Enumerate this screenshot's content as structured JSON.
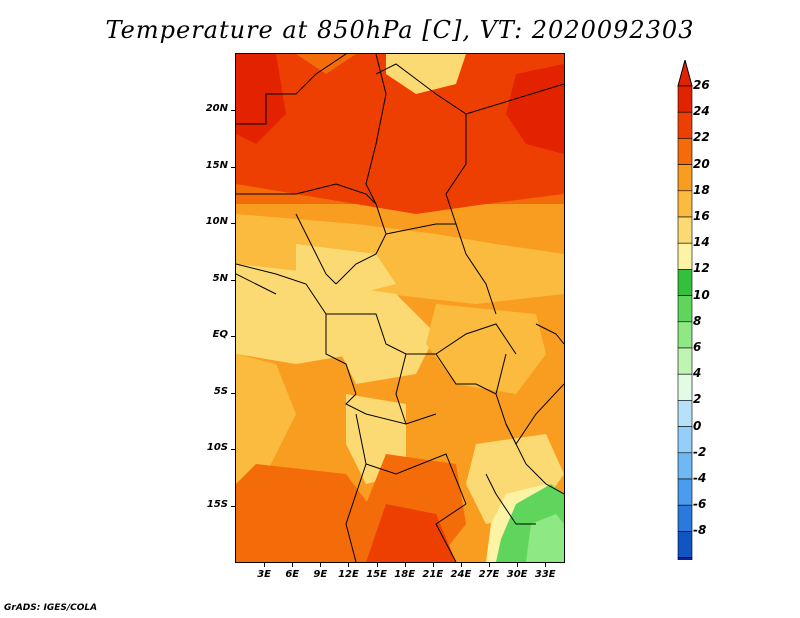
{
  "title": "Temperature at 850hPa [C], VT: 2020092303",
  "footer": "GrADS: IGES/COLA",
  "map": {
    "extent": {
      "lon_min": 0,
      "lon_max": 35,
      "lat_min": -20,
      "lat_max": 25
    },
    "lat_ticks": [
      {
        "value": 20,
        "label": "20N"
      },
      {
        "value": 15,
        "label": "15N"
      },
      {
        "value": 10,
        "label": "10N"
      },
      {
        "value": 5,
        "label": "5N"
      },
      {
        "value": 0,
        "label": "EQ"
      },
      {
        "value": -5,
        "label": "5S"
      },
      {
        "value": -10,
        "label": "10S"
      },
      {
        "value": -15,
        "label": "15S"
      }
    ],
    "lon_ticks": [
      {
        "value": 3,
        "label": "3E"
      },
      {
        "value": 6,
        "label": "6E"
      },
      {
        "value": 9,
        "label": "9E"
      },
      {
        "value": 12,
        "label": "12E"
      },
      {
        "value": 15,
        "label": "15E"
      },
      {
        "value": 18,
        "label": "18E"
      },
      {
        "value": 21,
        "label": "21E"
      },
      {
        "value": 24,
        "label": "24E"
      },
      {
        "value": 27,
        "label": "27E"
      },
      {
        "value": 30,
        "label": "30E"
      },
      {
        "value": 33,
        "label": "33E"
      }
    ]
  },
  "colorbar": {
    "levels": [
      26,
      24,
      22,
      20,
      18,
      16,
      14,
      12,
      10,
      8,
      6,
      4,
      2,
      0,
      -2,
      -4,
      -6,
      -8
    ],
    "colors_top_to_bottom": [
      "#e32200",
      "#ed3f02",
      "#f46b0a",
      "#f99d20",
      "#fbbb3f",
      "#fcda73",
      "#fdf3a4",
      "#33c13c",
      "#5fd65b",
      "#8ee883",
      "#bff4b3",
      "#e1fbe4",
      "#b7e1fa",
      "#93cff8",
      "#6eb9f4",
      "#4a9cee",
      "#2a79de",
      "#0f55c4",
      "#06239a"
    ],
    "over_color": "#e32200",
    "under_color": "#e6e6fa"
  }
}
